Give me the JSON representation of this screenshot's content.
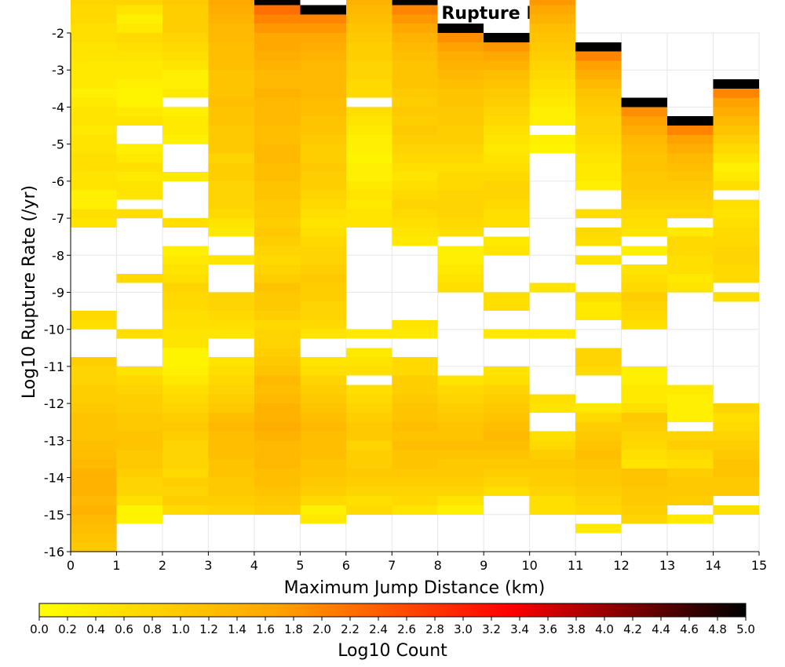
{
  "chart_data": {
    "type": "heatmap",
    "title": "Maximum Jump Dist vs Rupture Rate",
    "xlabel": "Maximum Jump Distance (km)",
    "ylabel": "Log10 Rupture Rate (/yr)",
    "xlim": [
      0,
      15
    ],
    "ylim": [
      -16,
      -2
    ],
    "x_bin_width": 1,
    "y_bin_height": 0.25,
    "x_ticks": [
      "0",
      "1",
      "2",
      "3",
      "4",
      "5",
      "6",
      "7",
      "8",
      "9",
      "10",
      "11",
      "12",
      "13",
      "14",
      "15"
    ],
    "y_ticks": [
      "-2",
      "-3",
      "-4",
      "-5",
      "-6",
      "-7",
      "-8",
      "-9",
      "-10",
      "-11",
      "-12",
      "-13",
      "-14",
      "-15",
      "-16"
    ],
    "grid": true,
    "colorbar": {
      "label": "Log10 Count",
      "range": [
        0,
        5
      ],
      "ticks": [
        "0.0",
        "0.2",
        "0.4",
        "0.6",
        "0.8",
        "1.0",
        "1.2",
        "1.4",
        "1.6",
        "1.8",
        "2.0",
        "2.2",
        "2.4",
        "2.6",
        "2.8",
        "3.0",
        "3.2",
        "3.4",
        "3.6",
        "3.8",
        "4.0",
        "4.2",
        "4.4",
        "4.6",
        "4.8",
        "5.0"
      ],
      "stops": [
        "#ffff00",
        "#ffa500",
        "#ff0000",
        "#000000"
      ]
    },
    "columns": [
      {
        "x": 0,
        "cells": "1.0,1.1,1.2,1.3,1.4,1.3,1.4,1.4,1.4,1.3,1.2,1.2,1.1,1.1,1.1,1.0,0.9,0.9,0.8,0.8,0.9,,,,0.6,0.7,,,,,,,,,,0.5,0.6,0.3,0.3,0.5,0.5,0.6,0.6,0.5,0.5,0.4,0.5,0.5,0.4,0.3,0.4,0.4,0.4,0.5,0.5,0.6,0.6,0.7,0.7,0.8,0.9,1.0,1.0,1.1,1.2,1.4,1.6,2.1,5.0"
      },
      {
        "x": 1,
        "cells": ",,,0.2,0.2,0.6,0.8,0.8,0.9,1.0,1.0,1.1,1.1,1.0,1.0,0.9,0.9,0.8,0.7,0.5,,,,0.6,,,,,,0.7,,,,,,,0.6,,0.5,0.5,0.4,0.6,0.4,0.3,,,0.5,0.4,0.2,0.2,0.3,0.4,0.4,0.5,0.6,0.7,0.4,0.3,0.5,0.8,1.0,1.0,1.1,1.2,1.3,1.6,2.0,5.0"
      },
      {
        "x": 2,
        "cells": ",,,,0.7,0.9,0.8,0.9,0.7,0.8,0.8,0.8,0.9,1.0,0.9,0.8,0.7,0.6,0.4,0.3,0.2,0.2,0.5,0.5,0.6,0.6,0.7,0.7,0.8,0.6,0.5,0.4,0.3,,,0.6,,,,,0.4,,,,0.3,0.4,0.4,0.3,,0.4,0.3,0.3,0.5,0.6,0.7,0.8,0.9,0.9,0.9,1.0,1.0,1.1,1.2,1.3,1.5,1.7,2.0,5.0"
      },
      {
        "x": 3,
        "cells": ",,,,0.8,0.9,1.0,1.0,1.1,1.1,1.2,1.2,1.2,1.3,1.2,1.0,0.9,0.8,0.7,0.6,0.5,,,0.5,0.6,0.7,0.8,0.8,,,,0.5,,,0.4,0.5,0.7,0.8,0.8,0.8,0.9,0.9,0.8,1.0,1.0,1.0,1.1,1.1,1.2,1.1,1.1,1.1,1.2,1.2,1.2,1.3,1.3,1.4,1.5,1.6,1.7,1.9,2.0,5.0"
      },
      {
        "x": 4,
        "cells": ",,,,0.9,1.0,1.1,1.2,1.2,1.3,1.3,1.3,1.4,1.5,1.4,1.4,1.3,1.2,1.3,1.1,1.0,0.9,0.8,0.8,0.7,0.9,1.0,1.0,1.1,0.9,0.8,0.7,0.8,0.9,1.0,0.9,1.0,1.0,1.1,1.1,1.2,1.2,1.3,1.3,1.2,1.2,1.3,1.3,1.3,1.4,1.3,1.3,1.4,1.5,1.6,1.6,1.8,2.0,2.2,5.0"
      },
      {
        "x": 5,
        "cells": ",,,0.4,0.3,0.7,0.9,1.0,1.1,1.1,1.2,1.2,1.2,1.3,1.2,1.1,1.0,0.9,0.8,0.6,0.5,,,0.5,0.7,0.8,0.8,0.9,0.9,1.0,0.9,0.8,0.8,0.7,0.6,0.5,0.6,0.7,0.8,0.9,0.9,1.0,0.9,0.9,1.0,1.1,1.1,1.2,1.2,1.3,1.3,1.3,1.3,1.4,1.5,1.6,1.8,2.0,5.0"
      },
      {
        "x": 6,
        "cells": ",,,,0.7,0.6,0.8,0.9,1.0,0.9,0.9,0.8,1.0,1.0,0.9,0.8,0.7,0.6,,0.6,0.5,0.4,,0.4,,,,,,,,,,,,0.5,0.5,0.4,0.5,0.4,0.3,0.3,0.2,0.3,0.3,0.4,0.5,0.6,,0.7,0.7,0.8,0.8,0.9,0.9,1.0,1.1,1.2,1.3,1.4,1.6,1.8,2.0,5.0"
      },
      {
        "x": 7,
        "cells": ",,,,0.5,0.7,0.8,0.9,1.0,1.1,1.1,1.2,1.1,1.2,1.1,1.1,1.0,0.9,0.9,0.7,0.7,,,0.4,0.5,,,,,,,,,0.4,0.5,0.6,0.7,0.8,0.7,0.6,0.5,0.6,0.7,0.8,0.9,1.0,0.9,1.0,0.9,1.0,1.1,1.1,1.1,1.2,1.3,1.4,1.6,1.8,2.0,5.0"
      },
      {
        "x": 8,
        "cells": ",,,,0.3,0.5,0.8,0.9,1.0,1.0,1.1,1.2,1.1,1.1,1.0,0.9,0.8,0.7,0.5,,,,,,,,,,0.6,0.5,0.4,0.3,0.3,,0.6,0.7,0.8,0.8,0.8,0.7,0.7,0.6,0.7,0.8,0.9,0.9,1.0,1.0,1.1,1.1,1.2,1.3,1.4,1.5,1.7,1.9,5.0"
      },
      {
        "x": 9,
        "cells": ",,,,,,0.6,0.8,0.9,1.0,1.1,1.2,1.3,1.2,1.1,1.0,0.9,0.8,0.6,0.5,,,,0.4,,,0.6,0.6,,,,,0.5,0.4,,0.6,0.6,0.7,0.8,0.8,0.7,0.6,0.5,0.4,0.5,0.6,0.7,0.8,0.9,1.0,1.1,1.2,1.4,1.6,1.8,5.0"
      },
      {
        "x": 10,
        "cells": ",,,,0.6,0.6,0.8,0.9,0.9,1.0,0.9,0.7,0.6,,,0.5,0.6,,,,,,,0.4,,,,,0.5,,,,,,,,,,,,,,,0.2,0.3,,0.3,0.3,0.4,0.5,0.6,0.7,0.8,0.9,1.0,1.1,1.2,1.4,1.6,1.8,5.0"
      },
      {
        "x": 11,
        "cells": ",,0.4,,0.7,0.8,0.9,1.0,1.0,1.1,1.2,1.1,1.0,0.9,0.7,0.4,,,,0.7,0.8,0.8,,,,0.4,0.4,0.6,,,,0.5,,0.6,0.7,,0.6,,,0.3,0.4,0.4,0.5,0.6,0.7,0.8,0.8,0.9,1.0,1.1,1.3,1.5,1.7,2.0,5.0"
      },
      {
        "x": 12,
        "cells": ",,,0.8,0.9,1.0,1.0,1.1,1.1,0.5,0.6,0.7,0.8,0.9,1.0,0.6,0.4,0.4,0.3,0.3,,,,,0.6,0.7,0.8,0.9,0.7,0.6,0.5,,0.3,,0.5,0.6,0.7,0.8,0.9,1.0,1.0,1.1,1.1,1.2,1.3,1.5,1.7,1.9,5.0"
      },
      {
        "x": 13,
        "cells": ",,,0.4,,0.9,1.0,1.0,0.9,0.6,0.7,0.9,0.8,,0.3,0.3,0.3,0.4,,,,,,,,,,,0.5,0.4,0.6,0.6,0.7,0.7,0.4,,0.7,0.8,0.9,1.0,1.1,1.2,1.3,1.5,1.7,2.0,5.0"
      },
      {
        "x": 14,
        "cells": ",,,,0.6,,1.0,1.0,1.1,1.1,1.0,0.9,0.8,0.7,0.6,0.8,,,,,,,,,,,,0.6,,0.7,0.7,0.8,0.8,0.7,0.7,0.6,0.5,0.6,,0.6,0.4,0.3,0.5,0.7,0.9,1.1,1.3,1.5,1.7,2.0,5.0"
      }
    ]
  }
}
